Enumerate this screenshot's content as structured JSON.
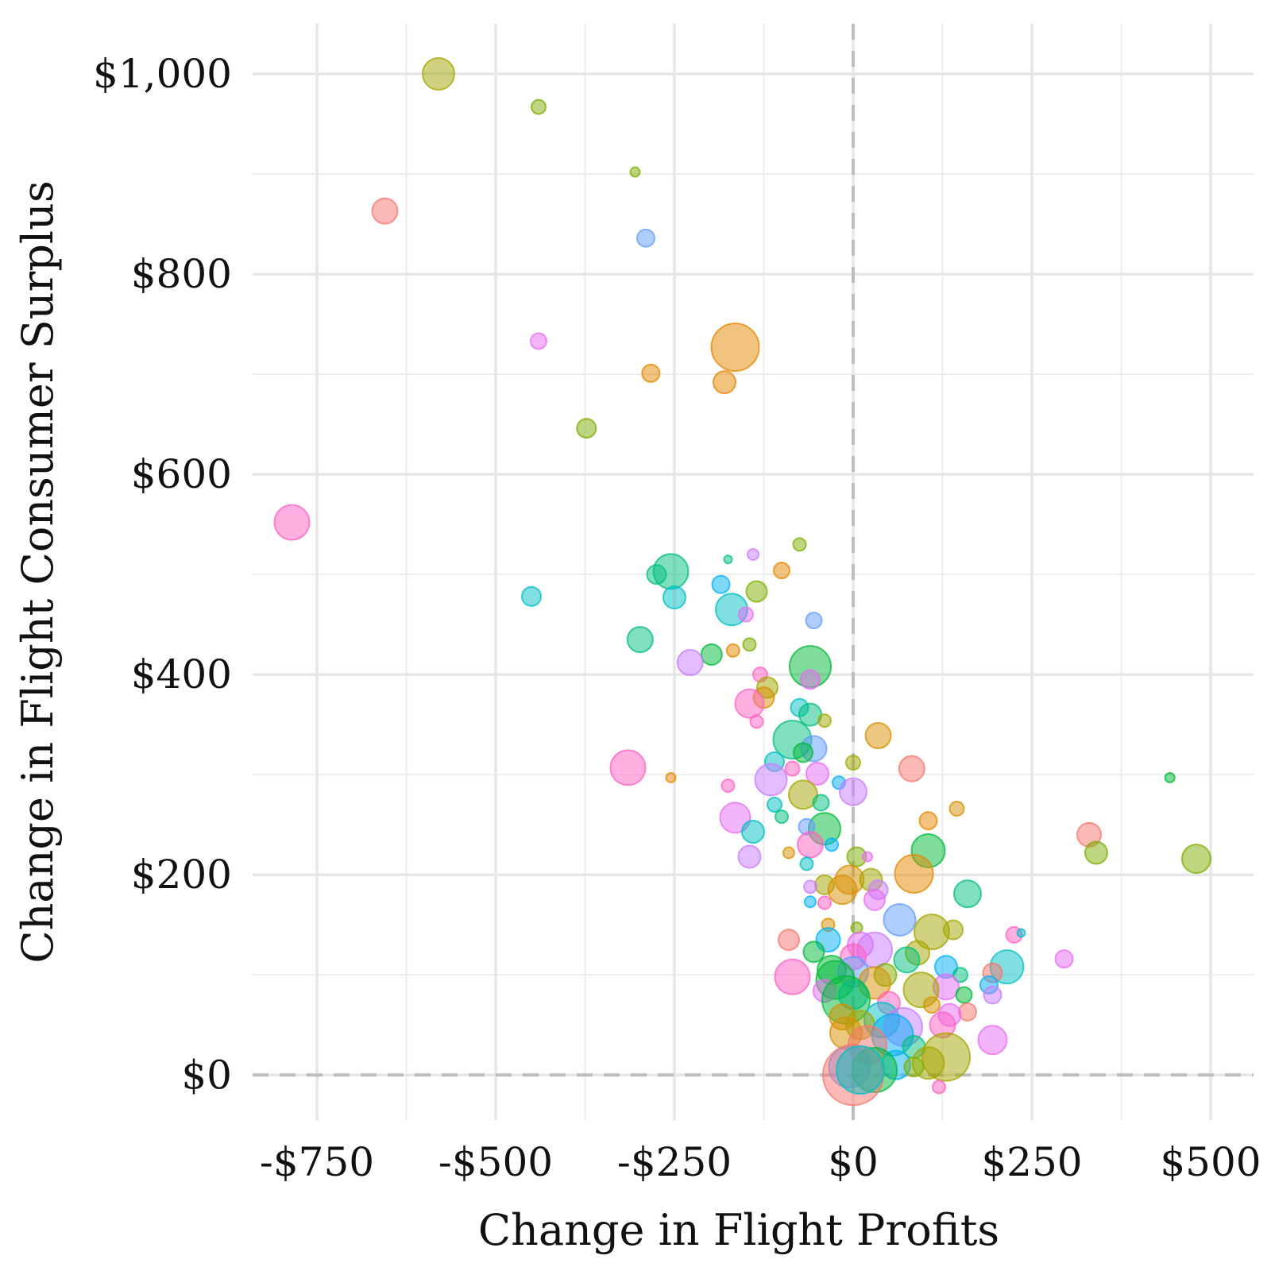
{
  "chart_data": {
    "type": "scatter",
    "title": "",
    "xlabel": "Change in Flight Profits",
    "ylabel": "Change in Flight Consumer Surplus",
    "xlim": [
      -840,
      560
    ],
    "ylim": [
      -45,
      1050
    ],
    "x_ticks": [
      {
        "value": -750,
        "label": "-$750"
      },
      {
        "value": -500,
        "label": "-$500"
      },
      {
        "value": -250,
        "label": "-$250"
      },
      {
        "value": 0,
        "label": "$0"
      },
      {
        "value": 250,
        "label": "$250"
      },
      {
        "value": 500,
        "label": "$500"
      }
    ],
    "x_minor_ticks": [
      -625,
      -375,
      -125,
      125,
      375
    ],
    "y_ticks": [
      {
        "value": 0,
        "label": "$0"
      },
      {
        "value": 200,
        "label": "$200"
      },
      {
        "value": 400,
        "label": "$400"
      },
      {
        "value": 600,
        "label": "$600"
      },
      {
        "value": 800,
        "label": "$800"
      },
      {
        "value": 1000,
        "label": "$1,000"
      }
    ],
    "y_minor_ticks": [
      100,
      300,
      500,
      700,
      900
    ],
    "reference_lines": {
      "x": 0,
      "y": 0,
      "style": "dashed",
      "color": "#bdbdbd"
    },
    "grid": true,
    "legend": "none",
    "point_opacity": 0.5,
    "size_encoding": "bubble radius",
    "points": [
      {
        "x": -580,
        "y": 1000,
        "size": 20,
        "color": "#A3A500"
      },
      {
        "x": -440,
        "y": 967,
        "size": 9,
        "color": "#7CAE00"
      },
      {
        "x": -305,
        "y": 902,
        "size": 6,
        "color": "#7CAE00"
      },
      {
        "x": -655,
        "y": 863,
        "size": 16,
        "color": "#F8766D"
      },
      {
        "x": -290,
        "y": 836,
        "size": 11,
        "color": "#619CFF"
      },
      {
        "x": -165,
        "y": 727,
        "size": 30,
        "color": "#E58700"
      },
      {
        "x": -440,
        "y": 733,
        "size": 10,
        "color": "#E76BF3"
      },
      {
        "x": -283,
        "y": 701,
        "size": 11,
        "color": "#E58700"
      },
      {
        "x": -180,
        "y": 692,
        "size": 14,
        "color": "#E58700"
      },
      {
        "x": -373,
        "y": 646,
        "size": 12,
        "color": "#7CAE00"
      },
      {
        "x": -785,
        "y": 552,
        "size": 22,
        "color": "#FF61C3"
      },
      {
        "x": -75,
        "y": 530,
        "size": 8,
        "color": "#7CAE00"
      },
      {
        "x": -140,
        "y": 520,
        "size": 7,
        "color": "#C77CFF"
      },
      {
        "x": -175,
        "y": 515,
        "size": 5,
        "color": "#00BF7D"
      },
      {
        "x": -100,
        "y": 504,
        "size": 10,
        "color": "#E58700"
      },
      {
        "x": -255,
        "y": 503,
        "size": 22,
        "color": "#00BF7D"
      },
      {
        "x": -275,
        "y": 500,
        "size": 12,
        "color": "#00BF7D"
      },
      {
        "x": -185,
        "y": 490,
        "size": 11,
        "color": "#00B0F6"
      },
      {
        "x": -135,
        "y": 483,
        "size": 13,
        "color": "#7CAE00"
      },
      {
        "x": -450,
        "y": 478,
        "size": 12,
        "color": "#00BFC4"
      },
      {
        "x": -250,
        "y": 477,
        "size": 14,
        "color": "#00BFC4"
      },
      {
        "x": -170,
        "y": 465,
        "size": 20,
        "color": "#00BFC4"
      },
      {
        "x": -150,
        "y": 460,
        "size": 9,
        "color": "#E76BF3"
      },
      {
        "x": -55,
        "y": 454,
        "size": 10,
        "color": "#619CFF"
      },
      {
        "x": -298,
        "y": 435,
        "size": 16,
        "color": "#00BF7D"
      },
      {
        "x": -145,
        "y": 430,
        "size": 8,
        "color": "#7CAE00"
      },
      {
        "x": -168,
        "y": 424,
        "size": 8,
        "color": "#E58700"
      },
      {
        "x": -198,
        "y": 420,
        "size": 13,
        "color": "#00BA38"
      },
      {
        "x": -228,
        "y": 412,
        "size": 16,
        "color": "#C77CFF"
      },
      {
        "x": -60,
        "y": 408,
        "size": 26,
        "color": "#00BA38"
      },
      {
        "x": -130,
        "y": 400,
        "size": 9,
        "color": "#FF61C3"
      },
      {
        "x": -60,
        "y": 395,
        "size": 12,
        "color": "#E76BF3"
      },
      {
        "x": -120,
        "y": 387,
        "size": 13,
        "color": "#A3A500"
      },
      {
        "x": -125,
        "y": 377,
        "size": 13,
        "color": "#D89000"
      },
      {
        "x": -145,
        "y": 371,
        "size": 18,
        "color": "#FF61C3"
      },
      {
        "x": -75,
        "y": 367,
        "size": 11,
        "color": "#00BFC4"
      },
      {
        "x": -60,
        "y": 360,
        "size": 14,
        "color": "#00BF7D"
      },
      {
        "x": -40,
        "y": 354,
        "size": 8,
        "color": "#A3A500"
      },
      {
        "x": -135,
        "y": 353,
        "size": 8,
        "color": "#FF61C3"
      },
      {
        "x": 35,
        "y": 339,
        "size": 16,
        "color": "#D89000"
      },
      {
        "x": -85,
        "y": 335,
        "size": 24,
        "color": "#00BF7D"
      },
      {
        "x": -55,
        "y": 326,
        "size": 16,
        "color": "#619CFF"
      },
      {
        "x": -70,
        "y": 322,
        "size": 12,
        "color": "#00BA38"
      },
      {
        "x": -110,
        "y": 313,
        "size": 12,
        "color": "#00BFC4"
      },
      {
        "x": 0,
        "y": 312,
        "size": 9,
        "color": "#A3A500"
      },
      {
        "x": -315,
        "y": 307,
        "size": 22,
        "color": "#FF61C3"
      },
      {
        "x": 82,
        "y": 306,
        "size": 16,
        "color": "#F8766D"
      },
      {
        "x": -85,
        "y": 306,
        "size": 9,
        "color": "#FF61C3"
      },
      {
        "x": -50,
        "y": 301,
        "size": 14,
        "color": "#E76BF3"
      },
      {
        "x": -115,
        "y": 295,
        "size": 20,
        "color": "#C77CFF"
      },
      {
        "x": -255,
        "y": 297,
        "size": 6,
        "color": "#E58700"
      },
      {
        "x": 443,
        "y": 297,
        "size": 6,
        "color": "#00BA38"
      },
      {
        "x": -20,
        "y": 292,
        "size": 8,
        "color": "#00B0F6"
      },
      {
        "x": -175,
        "y": 289,
        "size": 8,
        "color": "#FF61C3"
      },
      {
        "x": -70,
        "y": 280,
        "size": 18,
        "color": "#A3A500"
      },
      {
        "x": 0,
        "y": 283,
        "size": 17,
        "color": "#C77CFF"
      },
      {
        "x": -45,
        "y": 272,
        "size": 10,
        "color": "#00BF7D"
      },
      {
        "x": -110,
        "y": 270,
        "size": 9,
        "color": "#00BFC4"
      },
      {
        "x": 145,
        "y": 266,
        "size": 9,
        "color": "#D89000"
      },
      {
        "x": -165,
        "y": 257,
        "size": 19,
        "color": "#E76BF3"
      },
      {
        "x": -100,
        "y": 258,
        "size": 8,
        "color": "#00BF7D"
      },
      {
        "x": 105,
        "y": 254,
        "size": 11,
        "color": "#E58700"
      },
      {
        "x": -40,
        "y": 246,
        "size": 20,
        "color": "#00BA38"
      },
      {
        "x": -65,
        "y": 248,
        "size": 10,
        "color": "#619CFF"
      },
      {
        "x": -140,
        "y": 243,
        "size": 14,
        "color": "#00BFC4"
      },
      {
        "x": 330,
        "y": 240,
        "size": 15,
        "color": "#F8766D"
      },
      {
        "x": -60,
        "y": 230,
        "size": 16,
        "color": "#FF61C3"
      },
      {
        "x": -30,
        "y": 230,
        "size": 8,
        "color": "#00B0F6"
      },
      {
        "x": 105,
        "y": 224,
        "size": 21,
        "color": "#00BA38"
      },
      {
        "x": 340,
        "y": 222,
        "size": 14,
        "color": "#7CAE00"
      },
      {
        "x": 480,
        "y": 216,
        "size": 18,
        "color": "#7CAE00"
      },
      {
        "x": -145,
        "y": 218,
        "size": 14,
        "color": "#C77CFF"
      },
      {
        "x": 5,
        "y": 218,
        "size": 12,
        "color": "#7CAE00"
      },
      {
        "x": 20,
        "y": 218,
        "size": 6,
        "color": "#E76BF3"
      },
      {
        "x": -90,
        "y": 222,
        "size": 7,
        "color": "#D89000"
      },
      {
        "x": -65,
        "y": 211,
        "size": 8,
        "color": "#00BFC4"
      },
      {
        "x": 85,
        "y": 201,
        "size": 24,
        "color": "#E58700"
      },
      {
        "x": -5,
        "y": 195,
        "size": 18,
        "color": "#D89000"
      },
      {
        "x": 25,
        "y": 195,
        "size": 14,
        "color": "#A3A500"
      },
      {
        "x": -40,
        "y": 190,
        "size": 12,
        "color": "#A3A500"
      },
      {
        "x": -60,
        "y": 188,
        "size": 8,
        "color": "#C77CFF"
      },
      {
        "x": -15,
        "y": 185,
        "size": 18,
        "color": "#D89000"
      },
      {
        "x": 35,
        "y": 185,
        "size": 12,
        "color": "#C77CFF"
      },
      {
        "x": 160,
        "y": 181,
        "size": 17,
        "color": "#00BF7D"
      },
      {
        "x": 30,
        "y": 175,
        "size": 13,
        "color": "#E76BF3"
      },
      {
        "x": -60,
        "y": 173,
        "size": 7,
        "color": "#00B0F6"
      },
      {
        "x": -40,
        "y": 172,
        "size": 8,
        "color": "#FF61C3"
      },
      {
        "x": 65,
        "y": 155,
        "size": 20,
        "color": "#619CFF"
      },
      {
        "x": -35,
        "y": 150,
        "size": 8,
        "color": "#D89000"
      },
      {
        "x": 110,
        "y": 143,
        "size": 22,
        "color": "#A3A500"
      },
      {
        "x": 140,
        "y": 145,
        "size": 12,
        "color": "#A3A500"
      },
      {
        "x": 5,
        "y": 147,
        "size": 7,
        "color": "#7CAE00"
      },
      {
        "x": 225,
        "y": 140,
        "size": 10,
        "color": "#FF61C3"
      },
      {
        "x": 235,
        "y": 142,
        "size": 5,
        "color": "#00BFC4"
      },
      {
        "x": -90,
        "y": 135,
        "size": 13,
        "color": "#F8766D"
      },
      {
        "x": -35,
        "y": 135,
        "size": 15,
        "color": "#00B0F6"
      },
      {
        "x": 10,
        "y": 130,
        "size": 16,
        "color": "#E76BF3"
      },
      {
        "x": 30,
        "y": 125,
        "size": 22,
        "color": "#C77CFF"
      },
      {
        "x": -55,
        "y": 123,
        "size": 13,
        "color": "#00BA38"
      },
      {
        "x": 90,
        "y": 122,
        "size": 15,
        "color": "#A3A500"
      },
      {
        "x": 0,
        "y": 118,
        "size": 16,
        "color": "#FF61C3"
      },
      {
        "x": 295,
        "y": 116,
        "size": 11,
        "color": "#E76BF3"
      },
      {
        "x": 75,
        "y": 115,
        "size": 16,
        "color": "#00BF7D"
      },
      {
        "x": 130,
        "y": 108,
        "size": 14,
        "color": "#00B0F6"
      },
      {
        "x": 215,
        "y": 108,
        "size": 21,
        "color": "#00BFC4"
      },
      {
        "x": -30,
        "y": 105,
        "size": 18,
        "color": "#00BA38"
      },
      {
        "x": 0,
        "y": 103,
        "size": 19,
        "color": "#619CFF"
      },
      {
        "x": 195,
        "y": 102,
        "size": 12,
        "color": "#F8766D"
      },
      {
        "x": 45,
        "y": 100,
        "size": 14,
        "color": "#7CAE00"
      },
      {
        "x": 150,
        "y": 100,
        "size": 9,
        "color": "#00BF7D"
      },
      {
        "x": -85,
        "y": 98,
        "size": 22,
        "color": "#FF61C3"
      },
      {
        "x": -25,
        "y": 95,
        "size": 24,
        "color": "#00BA38"
      },
      {
        "x": 30,
        "y": 92,
        "size": 20,
        "color": "#D89000"
      },
      {
        "x": 190,
        "y": 90,
        "size": 11,
        "color": "#00B0F6"
      },
      {
        "x": 130,
        "y": 88,
        "size": 16,
        "color": "#E76BF3"
      },
      {
        "x": 95,
        "y": 85,
        "size": 22,
        "color": "#A3A500"
      },
      {
        "x": -40,
        "y": 84,
        "size": 14,
        "color": "#E76BF3"
      },
      {
        "x": 0,
        "y": 80,
        "size": 18,
        "color": "#00BFC4"
      },
      {
        "x": 195,
        "y": 80,
        "size": 11,
        "color": "#C77CFF"
      },
      {
        "x": 155,
        "y": 80,
        "size": 10,
        "color": "#00BA38"
      },
      {
        "x": -10,
        "y": 75,
        "size": 30,
        "color": "#00BA38"
      },
      {
        "x": 50,
        "y": 72,
        "size": 14,
        "color": "#FF61C3"
      },
      {
        "x": 110,
        "y": 70,
        "size": 10,
        "color": "#D89000"
      },
      {
        "x": 160,
        "y": 63,
        "size": 11,
        "color": "#F8766D"
      },
      {
        "x": 135,
        "y": 60,
        "size": 14,
        "color": "#E76BF3"
      },
      {
        "x": -15,
        "y": 58,
        "size": 16,
        "color": "#D89000"
      },
      {
        "x": 40,
        "y": 55,
        "size": 22,
        "color": "#00BFC4"
      },
      {
        "x": 10,
        "y": 50,
        "size": 18,
        "color": "#A3A500"
      },
      {
        "x": 70,
        "y": 48,
        "size": 24,
        "color": "#C77CFF"
      },
      {
        "x": 125,
        "y": 50,
        "size": 16,
        "color": "#FF61C3"
      },
      {
        "x": -10,
        "y": 42,
        "size": 20,
        "color": "#D89000"
      },
      {
        "x": 55,
        "y": 40,
        "size": 26,
        "color": "#00B0F6"
      },
      {
        "x": 195,
        "y": 35,
        "size": 18,
        "color": "#E76BF3"
      },
      {
        "x": 20,
        "y": 30,
        "size": 24,
        "color": "#F8766D"
      },
      {
        "x": 85,
        "y": 28,
        "size": 14,
        "color": "#00BF7D"
      },
      {
        "x": 130,
        "y": 18,
        "size": 30,
        "color": "#A3A500"
      },
      {
        "x": 105,
        "y": 12,
        "size": 20,
        "color": "#A3A500"
      },
      {
        "x": 60,
        "y": 10,
        "size": 18,
        "color": "#00B0F6"
      },
      {
        "x": -5,
        "y": 8,
        "size": 26,
        "color": "#619CFF"
      },
      {
        "x": 30,
        "y": 5,
        "size": 28,
        "color": "#00BA38"
      },
      {
        "x": 85,
        "y": 8,
        "size": 12,
        "color": "#7CAE00"
      },
      {
        "x": 0,
        "y": 0,
        "size": 38,
        "color": "#F8766D"
      },
      {
        "x": 10,
        "y": 5,
        "size": 30,
        "color": "#00BFC4"
      },
      {
        "x": 120,
        "y": -12,
        "size": 8,
        "color": "#FF61C3"
      }
    ]
  }
}
